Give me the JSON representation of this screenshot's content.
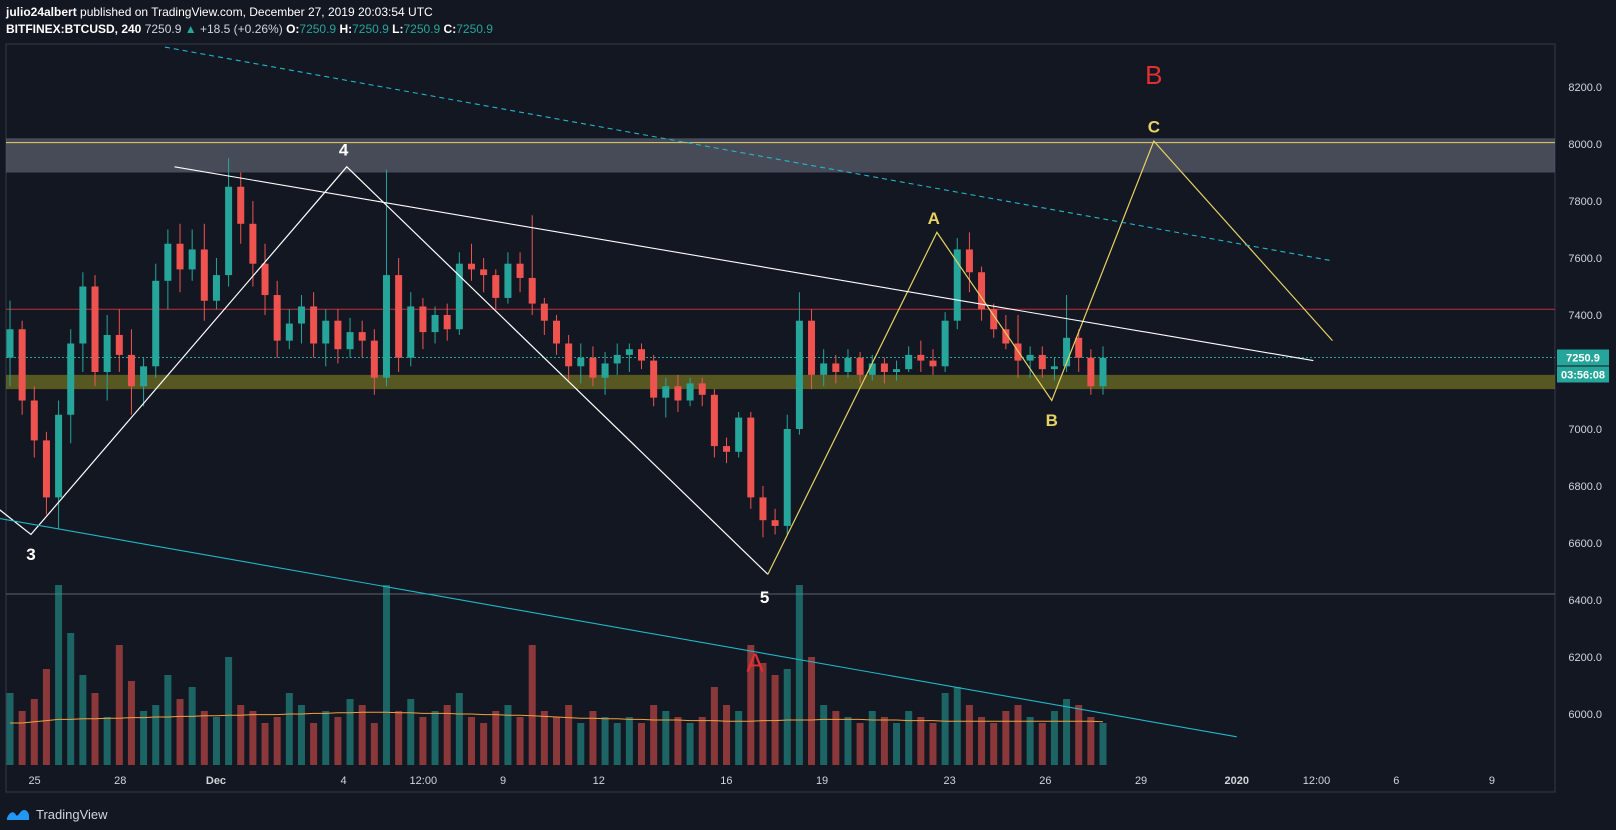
{
  "header": {
    "author": "julio24albert",
    "published": "published on TradingView.com, December 27, 2019 20:03:54 UTC",
    "symbol": "BITFINEX:BTCUSD, 240",
    "last": "7250.9",
    "change_arrow": "▲",
    "change": "+18.5 (+0.26%)",
    "ohlc": [
      {
        "k": "O:",
        "v": "7250.9"
      },
      {
        "k": "H:",
        "v": "7250.9"
      },
      {
        "k": "L:",
        "v": "7250.9"
      },
      {
        "k": "C:",
        "v": "7250.9"
      }
    ]
  },
  "footer": {
    "brand": "TradingView",
    "logo_icon": "tradingview-logo-icon"
  },
  "colors": {
    "background": "#131722",
    "up": "#26a69a",
    "down": "#ef5350",
    "fib": "#e6d364",
    "wave": "#ffffff",
    "channel": "#22b6c9",
    "red_label": "#e03030"
  },
  "chart_data": {
    "type": "candlestick",
    "timeframe": "240",
    "ylim": [
      5900,
      8300
    ],
    "y_ticks": [
      "8200.0",
      "8000.0",
      "7800.0",
      "7600.0",
      "7400.0",
      "7200.0",
      "7000.0",
      "6800.0",
      "6600.0",
      "6400.0",
      "6200.0",
      "6000.0"
    ],
    "x_ticks": [
      "25",
      "28",
      "Dec",
      "4",
      "12:00",
      "9",
      "12",
      "16",
      "19",
      "23",
      "26",
      "29",
      "2020",
      "12:00",
      "6",
      "9"
    ],
    "last_price_label": "7250.9",
    "countdown_label": "03:56:08",
    "horizontal_zones": [
      {
        "name": "resistance-zone",
        "from": 7900,
        "to": 8020,
        "color": "#5a5e6b"
      },
      {
        "name": "support-zone",
        "from": 7140,
        "to": 7190,
        "color": "#6f6f22"
      }
    ],
    "horizontal_lines": [
      {
        "name": "resistance-line",
        "price": 8005,
        "color": "#e6d364"
      },
      {
        "name": "red-level-line",
        "price": 7420,
        "color": "#c0303a"
      }
    ],
    "wave_labels": [
      {
        "text": "3",
        "price": 6540,
        "day": 25.2,
        "color": "#ffffff"
      },
      {
        "text": "4",
        "price": 7960,
        "day": 35.0,
        "color": "#ffffff"
      },
      {
        "text": "5",
        "price": 6390,
        "day": 48.2,
        "color": "#ffffff"
      },
      {
        "text": "A",
        "price": 7720,
        "day": 53.5,
        "color": "#e6d364"
      },
      {
        "text": "B",
        "price": 7010,
        "day": 57.2,
        "color": "#e6d364"
      },
      {
        "text": "C",
        "price": 8040,
        "day": 60.4,
        "color": "#e6d364"
      },
      {
        "text": "A",
        "price": 6150,
        "day": 47.9,
        "color": "#e03030"
      },
      {
        "text": "B",
        "price": 8210,
        "day": 60.4,
        "color": "#e03030"
      }
    ],
    "wave_lines": [
      {
        "name": "impulse-wave-path",
        "color": "#ffffff",
        "points": [
          [
            23.5,
            6780
          ],
          [
            25.2,
            6630
          ],
          [
            35.1,
            7920
          ],
          [
            48.3,
            6490
          ]
        ]
      },
      {
        "name": "abc-correction-path",
        "color": "#e6d364",
        "points": [
          [
            48.3,
            6490
          ],
          [
            53.6,
            7690
          ],
          [
            57.2,
            7100
          ],
          [
            60.4,
            8010
          ],
          [
            66.0,
            7310
          ]
        ]
      }
    ],
    "trend_lines": [
      {
        "name": "upper-trendline",
        "color": "#ffffff",
        "style": "solid",
        "points": [
          [
            29.7,
            7920
          ],
          [
            65.4,
            7240
          ]
        ]
      },
      {
        "name": "dashed-channel-line",
        "color": "#22b6c9",
        "style": "dashed",
        "points": [
          [
            29.4,
            8340
          ],
          [
            66.0,
            7590
          ]
        ]
      },
      {
        "name": "lower-channel-line",
        "color": "#22b6c9",
        "style": "solid",
        "points": [
          [
            23.5,
            6700
          ],
          [
            63.0,
            5920
          ]
        ]
      }
    ],
    "candles": [
      [
        7250,
        7450,
        7150,
        7350
      ],
      [
        7350,
        7380,
        7050,
        7100
      ],
      [
        7100,
        7150,
        6900,
        6960
      ],
      [
        6960,
        6990,
        6700,
        6760
      ],
      [
        6760,
        7100,
        6650,
        7050
      ],
      [
        7050,
        7350,
        6950,
        7300
      ],
      [
        7300,
        7550,
        7200,
        7500
      ],
      [
        7500,
        7540,
        7150,
        7200
      ],
      [
        7200,
        7400,
        7100,
        7330
      ],
      [
        7330,
        7420,
        7200,
        7260
      ],
      [
        7260,
        7350,
        7050,
        7150
      ],
      [
        7150,
        7250,
        7080,
        7220
      ],
      [
        7220,
        7580,
        7180,
        7520
      ],
      [
        7520,
        7700,
        7420,
        7650
      ],
      [
        7650,
        7720,
        7480,
        7560
      ],
      [
        7560,
        7700,
        7520,
        7630
      ],
      [
        7630,
        7720,
        7380,
        7450
      ],
      [
        7450,
        7600,
        7420,
        7540
      ],
      [
        7540,
        7950,
        7500,
        7850
      ],
      [
        7850,
        7900,
        7650,
        7720
      ],
      [
        7720,
        7800,
        7500,
        7580
      ],
      [
        7580,
        7650,
        7400,
        7470
      ],
      [
        7470,
        7520,
        7250,
        7310
      ],
      [
        7310,
        7420,
        7280,
        7370
      ],
      [
        7370,
        7470,
        7300,
        7430
      ],
      [
        7430,
        7480,
        7250,
        7300
      ],
      [
        7300,
        7420,
        7220,
        7380
      ],
      [
        7380,
        7420,
        7230,
        7280
      ],
      [
        7280,
        7390,
        7250,
        7340
      ],
      [
        7340,
        7380,
        7250,
        7310
      ],
      [
        7310,
        7350,
        7120,
        7180
      ],
      [
        7180,
        7910,
        7150,
        7540
      ],
      [
        7540,
        7600,
        7200,
        7250
      ],
      [
        7250,
        7480,
        7220,
        7430
      ],
      [
        7430,
        7460,
        7280,
        7340
      ],
      [
        7340,
        7430,
        7300,
        7400
      ],
      [
        7400,
        7440,
        7310,
        7350
      ],
      [
        7350,
        7620,
        7330,
        7580
      ],
      [
        7580,
        7650,
        7520,
        7560
      ],
      [
        7560,
        7600,
        7480,
        7540
      ],
      [
        7540,
        7560,
        7420,
        7460
      ],
      [
        7460,
        7620,
        7440,
        7580
      ],
      [
        7580,
        7620,
        7480,
        7530
      ],
      [
        7530,
        7750,
        7400,
        7440
      ],
      [
        7440,
        7460,
        7330,
        7380
      ],
      [
        7380,
        7400,
        7260,
        7300
      ],
      [
        7300,
        7330,
        7170,
        7220
      ],
      [
        7220,
        7300,
        7160,
        7250
      ],
      [
        7250,
        7290,
        7150,
        7180
      ],
      [
        7180,
        7270,
        7120,
        7230
      ],
      [
        7230,
        7300,
        7190,
        7260
      ],
      [
        7260,
        7300,
        7200,
        7280
      ],
      [
        7280,
        7300,
        7210,
        7240
      ],
      [
        7240,
        7260,
        7080,
        7110
      ],
      [
        7110,
        7180,
        7040,
        7150
      ],
      [
        7150,
        7190,
        7060,
        7100
      ],
      [
        7100,
        7180,
        7080,
        7160
      ],
      [
        7160,
        7180,
        7080,
        7120
      ],
      [
        7120,
        7140,
        6900,
        6940
      ],
      [
        6940,
        6970,
        6880,
        6920
      ],
      [
        6920,
        7060,
        6900,
        7040
      ],
      [
        7040,
        7060,
        6720,
        6760
      ],
      [
        6760,
        6800,
        6620,
        6680
      ],
      [
        6680,
        6720,
        6630,
        6660
      ],
      [
        6660,
        7050,
        6630,
        7000
      ],
      [
        7000,
        7480,
        6980,
        7380
      ],
      [
        7380,
        7420,
        7140,
        7190
      ],
      [
        7190,
        7280,
        7150,
        7230
      ],
      [
        7230,
        7260,
        7160,
        7200
      ],
      [
        7200,
        7280,
        7180,
        7250
      ],
      [
        7250,
        7270,
        7160,
        7190
      ],
      [
        7190,
        7260,
        7170,
        7230
      ],
      [
        7230,
        7250,
        7160,
        7200
      ],
      [
        7200,
        7240,
        7170,
        7210
      ],
      [
        7210,
        7290,
        7200,
        7260
      ],
      [
        7260,
        7310,
        7200,
        7240
      ],
      [
        7240,
        7280,
        7190,
        7220
      ],
      [
        7220,
        7410,
        7200,
        7380
      ],
      [
        7380,
        7670,
        7350,
        7630
      ],
      [
        7630,
        7690,
        7480,
        7550
      ],
      [
        7550,
        7570,
        7380,
        7420
      ],
      [
        7420,
        7440,
        7320,
        7350
      ],
      [
        7350,
        7400,
        7280,
        7300
      ],
      [
        7300,
        7400,
        7180,
        7240
      ],
      [
        7240,
        7290,
        7180,
        7260
      ],
      [
        7260,
        7290,
        7180,
        7210
      ],
      [
        7210,
        7250,
        7170,
        7220
      ],
      [
        7220,
        7470,
        7200,
        7320
      ],
      [
        7320,
        7350,
        7200,
        7250
      ],
      [
        7250,
        7280,
        7120,
        7150
      ],
      [
        7150,
        7290,
        7120,
        7250
      ]
    ],
    "volumes": [
      120,
      90,
      110,
      160,
      300,
      220,
      150,
      120,
      80,
      200,
      140,
      90,
      100,
      150,
      110,
      130,
      90,
      80,
      180,
      100,
      90,
      70,
      80,
      120,
      100,
      70,
      90,
      80,
      110,
      100,
      70,
      300,
      90,
      110,
      80,
      90,
      100,
      120,
      80,
      70,
      90,
      100,
      80,
      200,
      90,
      80,
      100,
      70,
      90,
      80,
      70,
      80,
      70,
      100,
      90,
      80,
      70,
      80,
      130,
      100,
      90,
      200,
      170,
      150,
      160,
      300,
      180,
      100,
      90,
      80,
      70,
      90,
      80,
      70,
      90,
      80,
      70,
      120,
      130,
      100,
      80,
      70,
      90,
      100,
      80,
      70,
      90,
      110,
      100,
      80,
      70
    ],
    "volume_ma": [
      70,
      70,
      72,
      74,
      76,
      76,
      77,
      77,
      78,
      78,
      79,
      79,
      80,
      80,
      81,
      81,
      82,
      82,
      83,
      83,
      84,
      84,
      84,
      85,
      85,
      86,
      86,
      87,
      87,
      88,
      88,
      88,
      87,
      87,
      86,
      86,
      86,
      85,
      85,
      84,
      84,
      83,
      83,
      82,
      81,
      80,
      79,
      78,
      78,
      77,
      77,
      76,
      76,
      75,
      75,
      75,
      74,
      74,
      74,
      73,
      73,
      73,
      74,
      74,
      75,
      75,
      75,
      76,
      76,
      76,
      76,
      75,
      75,
      75,
      74,
      74,
      74,
      73,
      73,
      73,
      73,
      73,
      73,
      73,
      73,
      73,
      73,
      73,
      73,
      73,
      72
    ]
  }
}
